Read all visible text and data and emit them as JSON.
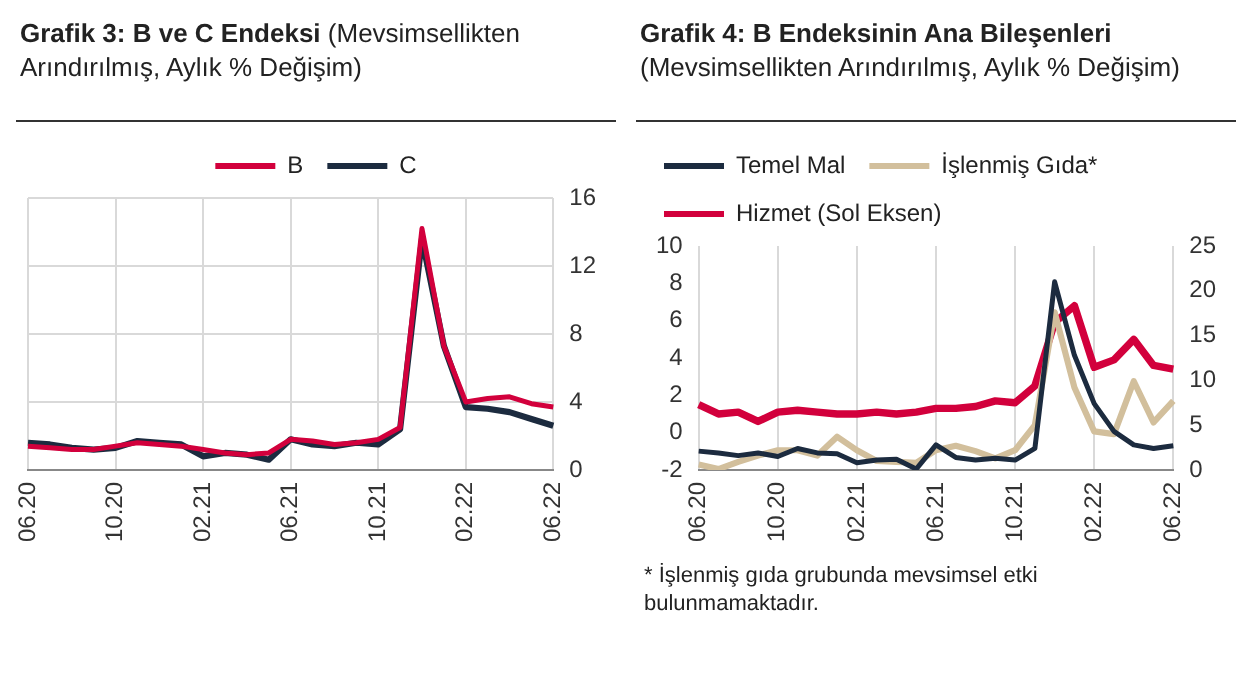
{
  "chart_data": [
    {
      "type": "line",
      "title": "Grafik 3: B ve C Endeksi",
      "subtitle": "(Mevsimsellikten Arındırılmış, Aylık % Değişim)",
      "categories": [
        "06.20",
        null,
        null,
        null,
        "10.20",
        null,
        null,
        null,
        "02.21",
        null,
        null,
        null,
        "06.21",
        null,
        null,
        null,
        "10.21",
        null,
        null,
        null,
        "02.22",
        null,
        null,
        null,
        "06.22"
      ],
      "series": [
        {
          "name": "B",
          "color": "#d2003c",
          "axis": "y2",
          "values": [
            1.4,
            1.3,
            1.2,
            1.2,
            1.4,
            1.6,
            1.5,
            1.4,
            1.2,
            1.0,
            0.9,
            1.0,
            1.8,
            1.7,
            1.5,
            1.6,
            1.8,
            2.5,
            14.2,
            7.3,
            4.0,
            4.2,
            4.3,
            3.9,
            3.7
          ]
        },
        {
          "name": "C",
          "color": "#1c2b3f",
          "axis": "y2",
          "values": [
            1.6,
            1.5,
            1.3,
            1.2,
            1.3,
            1.7,
            1.6,
            1.5,
            0.8,
            1.0,
            0.9,
            0.6,
            1.8,
            1.5,
            1.4,
            1.6,
            1.5,
            2.4,
            13.6,
            7.3,
            3.7,
            3.6,
            3.4,
            3.0,
            2.6
          ]
        }
      ],
      "y2lim": [
        0,
        16
      ],
      "y2ticks": [
        0,
        4,
        8,
        12,
        16
      ],
      "grid": true,
      "legend": "top",
      "marker": "none"
    },
    {
      "type": "line",
      "title": "Grafik 4: B Endeksinin Ana Bileşenleri",
      "subtitle": "(Mevsimsellikten Arındırılmış, Aylık % Değişim)",
      "categories": [
        "06.20",
        null,
        null,
        null,
        "10.20",
        null,
        null,
        null,
        "02.21",
        null,
        null,
        null,
        "06.21",
        null,
        null,
        null,
        "10.21",
        null,
        null,
        null,
        "02.22",
        null,
        null,
        null,
        "06.22"
      ],
      "series": [
        {
          "name": "Temel Mal",
          "color": "#1c2b3f",
          "axis": "y2",
          "values": [
            2.1,
            1.9,
            1.6,
            1.9,
            1.5,
            2.4,
            1.9,
            1.8,
            0.8,
            1.1,
            1.2,
            0.1,
            2.8,
            1.4,
            1.1,
            1.3,
            1.1,
            2.4,
            21.0,
            12.8,
            7.4,
            4.3,
            2.8,
            2.4,
            2.7
          ]
        },
        {
          "name": "İşlenmiş Gıda*",
          "color": "#d2bf9c",
          "axis": "y2",
          "values": [
            0.6,
            0.1,
            0.9,
            1.6,
            2.2,
            2.2,
            1.6,
            3.7,
            2.2,
            1.0,
            0.9,
            0.8,
            2.2,
            2.7,
            2.1,
            1.3,
            2.2,
            5.0,
            17.6,
            9.2,
            4.3,
            4.0,
            9.9,
            5.3,
            7.7
          ]
        },
        {
          "name": "Hizmet (Sol Eksen)",
          "color": "#d2003c",
          "axis": "y",
          "values": [
            1.5,
            1.0,
            1.1,
            0.6,
            1.1,
            1.2,
            1.1,
            1.0,
            1.0,
            1.1,
            1.0,
            1.1,
            1.3,
            1.3,
            1.4,
            1.7,
            1.6,
            2.5,
            5.9,
            6.8,
            3.5,
            3.9,
            5.0,
            3.6,
            3.4
          ]
        }
      ],
      "ylim": [
        -2,
        10
      ],
      "yticks": [
        -2,
        0,
        2,
        4,
        6,
        8,
        10
      ],
      "y2lim": [
        0,
        25
      ],
      "y2ticks": [
        0,
        5,
        10,
        15,
        20,
        25
      ],
      "grid": "x",
      "legend": "top left",
      "marker": "none",
      "annotations": [
        "* İşlenmiş gıda grubunda mevsimsel etki bulunmamaktadır."
      ]
    }
  ]
}
